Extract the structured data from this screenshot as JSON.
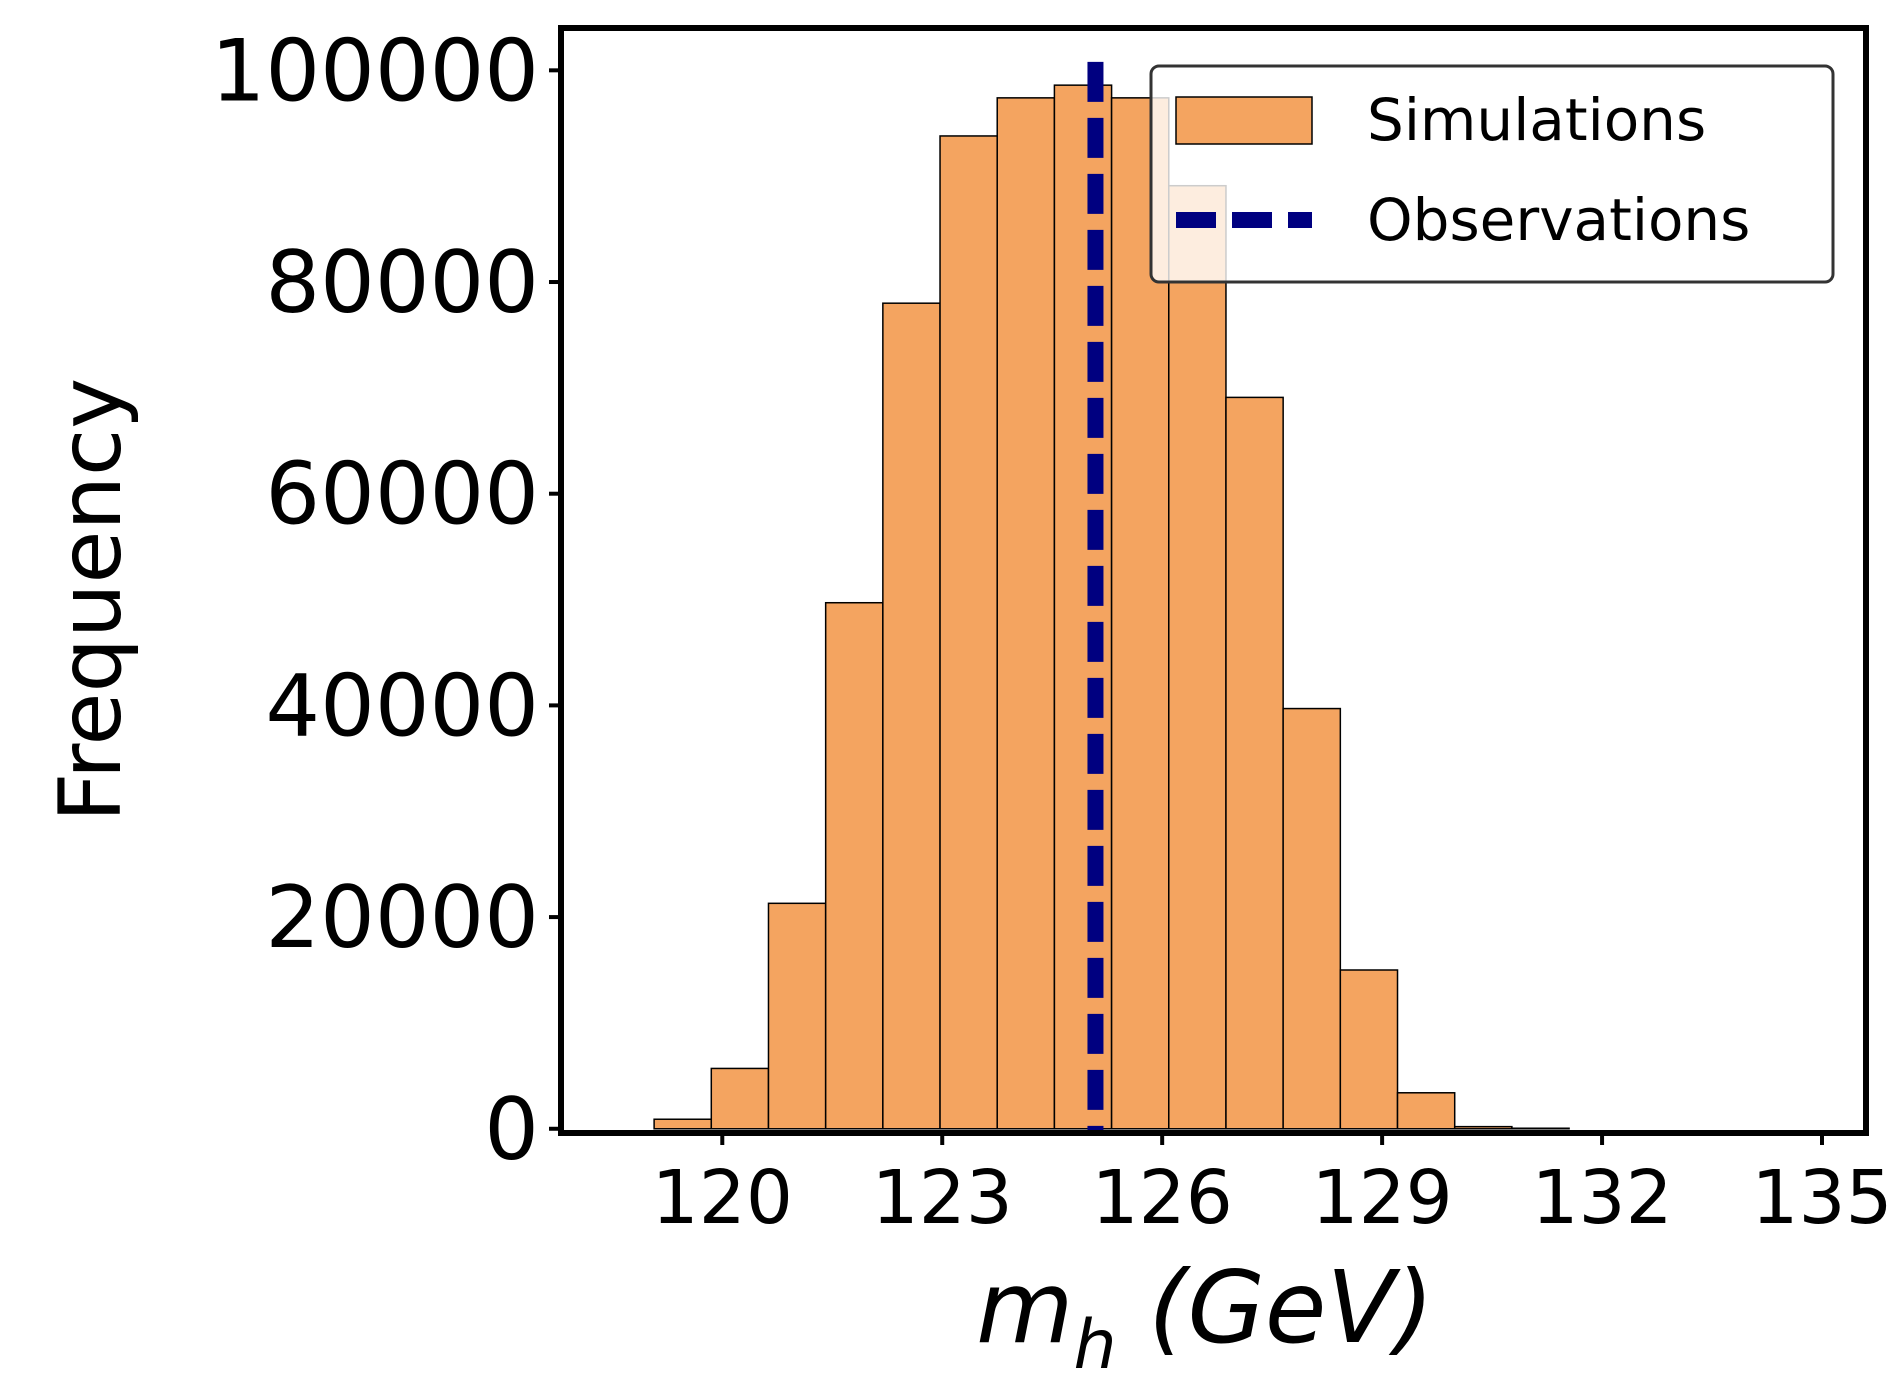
{
  "chart_data": {
    "type": "bar",
    "subtype": "histogram",
    "title": "",
    "xlabel": "m_h (GeV)",
    "xlabel_parts": {
      "main": "m",
      "sub": "h",
      "rest": " (GeV)"
    },
    "ylabel": "Frequency",
    "xlim": [
      117.8,
      135.6
    ],
    "ylim": [
      -400,
      104000
    ],
    "xticks": [
      120,
      123,
      126,
      129,
      132,
      135
    ],
    "yticks": [
      0,
      20000,
      40000,
      60000,
      80000,
      100000
    ],
    "grid": false,
    "legend_position": "top-right",
    "bin_edges": [
      119.07,
      119.85,
      120.63,
      121.41,
      122.19,
      122.97,
      123.75,
      124.53,
      125.31,
      126.09,
      126.87,
      127.65,
      128.43,
      129.21,
      129.99,
      130.77,
      131.55
    ],
    "counts": [
      900,
      5700,
      21300,
      49700,
      78000,
      93800,
      97400,
      98600,
      97400,
      89100,
      69100,
      39700,
      15000,
      3400,
      200,
      50
    ],
    "series": [
      {
        "name": "Simulations",
        "kind": "histogram",
        "color": "#f4a460",
        "edgecolor": "#000000"
      },
      {
        "name": "Observations",
        "kind": "vline",
        "x": 125.09,
        "color": "#000080",
        "linestyle": "dashed"
      }
    ]
  }
}
